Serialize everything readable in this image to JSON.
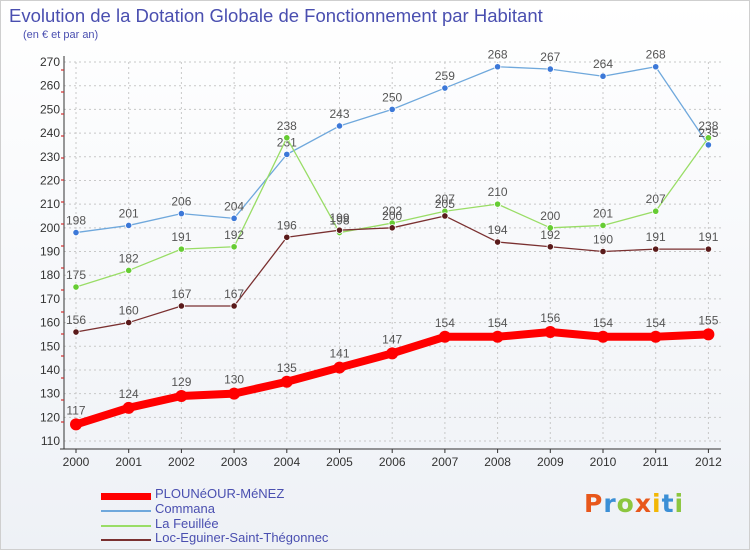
{
  "title": "Evolution de la Dotation Globale de Fonctionnement par Habitant",
  "subtitle": "(en € et par an)",
  "logo": {
    "letters": [
      "P",
      "r",
      "o",
      "x",
      "i",
      "t",
      "i"
    ],
    "colors": [
      "#e8571b",
      "#3b8fd6",
      "#8cc63f",
      "#e8571b",
      "#f2b705",
      "#3b8fd6",
      "#8cc63f"
    ]
  },
  "chart_data": {
    "type": "line",
    "x": [
      "2000",
      "2001",
      "2002",
      "2003",
      "2004",
      "2005",
      "2006",
      "2007",
      "2008",
      "2009",
      "2010",
      "2011",
      "2012"
    ],
    "ylim": [
      110,
      270
    ],
    "yticks": [
      110,
      120,
      130,
      140,
      150,
      160,
      170,
      180,
      190,
      200,
      210,
      220,
      230,
      240,
      250,
      260,
      270
    ],
    "grid": true,
    "legend_position": "bottom-left",
    "series": [
      {
        "name": "PLOUNéOUR-MéNEZ",
        "color": "#ff0000",
        "point_color": "#ff0000",
        "label_color": "#555555",
        "stroke": 8,
        "radius": 6,
        "values": [
          117,
          124,
          129,
          130,
          135,
          141,
          147,
          154,
          154,
          156,
          154,
          154,
          155
        ]
      },
      {
        "name": "Commana",
        "color": "#6fa8dc",
        "point_color": "#3c78d8",
        "label_color": "#555555",
        "stroke": 1.3,
        "radius": 3.2,
        "values": [
          198,
          201,
          206,
          204,
          231,
          243,
          250,
          259,
          268,
          267,
          264,
          268,
          235
        ]
      },
      {
        "name": "La Feuillée",
        "color": "#99dd66",
        "point_color": "#66cc33",
        "label_color": "#555555",
        "stroke": 1.3,
        "radius": 3.2,
        "values": [
          175,
          182,
          191,
          192,
          238,
          198,
          202,
          207,
          210,
          200,
          201,
          207,
          238
        ]
      },
      {
        "name": "Loc-Eguiner-Saint-Thégonnec",
        "color": "#7a3030",
        "point_color": "#5a1a1a",
        "label_color": "#555555",
        "stroke": 1.3,
        "radius": 3.2,
        "values": [
          156,
          160,
          167,
          167,
          196,
          199,
          200,
          205,
          194,
          192,
          190,
          191,
          191
        ]
      }
    ]
  }
}
